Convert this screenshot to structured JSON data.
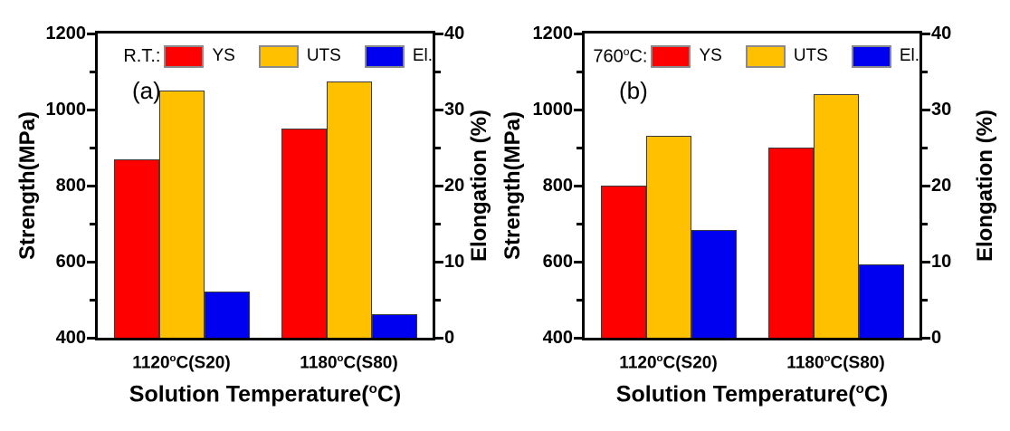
{
  "figure": {
    "xlabel": "Solution Temperature(°C)",
    "ylabel_left": "Strength(MPa)",
    "ylabel_right": "Elongation (%)"
  },
  "chart_data": [
    {
      "type": "bar",
      "panel_label": "(a)",
      "legend_prefix": "R.T.:",
      "title": "",
      "xlabel": "Solution Temperature(°C)",
      "ylabel_left": "Strength(MPa)",
      "ylabel_right": "Elongation (%)",
      "categories": [
        "1120°C(S20)",
        "1180°C(S80)"
      ],
      "ylim_left": [
        400,
        1200
      ],
      "ylim_right": [
        0,
        40
      ],
      "yticks_left": [
        400,
        600,
        800,
        1000,
        1200
      ],
      "yticks_right": [
        0,
        10,
        20,
        30,
        40
      ],
      "grid": false,
      "legend_position": "top-inside",
      "series": [
        {
          "name": "YS",
          "axis": "left",
          "unit": "MPa",
          "color": "#ff0000",
          "values": [
            870,
            950
          ]
        },
        {
          "name": "UTS",
          "axis": "left",
          "unit": "MPa",
          "color": "#ffc000",
          "values": [
            1050,
            1075
          ]
        },
        {
          "name": "El.",
          "axis": "right",
          "unit": "%",
          "color": "#0000f0",
          "values": [
            6.1,
            3.1
          ]
        }
      ]
    },
    {
      "type": "bar",
      "panel_label": "(b)",
      "legend_prefix": "760°C:",
      "title": "",
      "xlabel": "Solution Temperature(°C)",
      "ylabel_left": "Strength(MPa)",
      "ylabel_right": "Elongation (%)",
      "categories": [
        "1120°C(S20)",
        "1180°C(S80)"
      ],
      "ylim_left": [
        400,
        1200
      ],
      "ylim_right": [
        0,
        40
      ],
      "yticks_left": [
        400,
        600,
        800,
        1000,
        1200
      ],
      "yticks_right": [
        0,
        10,
        20,
        30,
        40
      ],
      "grid": false,
      "legend_position": "top-inside",
      "series": [
        {
          "name": "YS",
          "axis": "left",
          "unit": "MPa",
          "color": "#ff0000",
          "values": [
            800,
            900
          ]
        },
        {
          "name": "UTS",
          "axis": "left",
          "unit": "MPa",
          "color": "#ffc000",
          "values": [
            930,
            1040
          ]
        },
        {
          "name": "El.",
          "axis": "right",
          "unit": "%",
          "color": "#0000f0",
          "values": [
            14.2,
            9.7
          ]
        }
      ]
    }
  ]
}
